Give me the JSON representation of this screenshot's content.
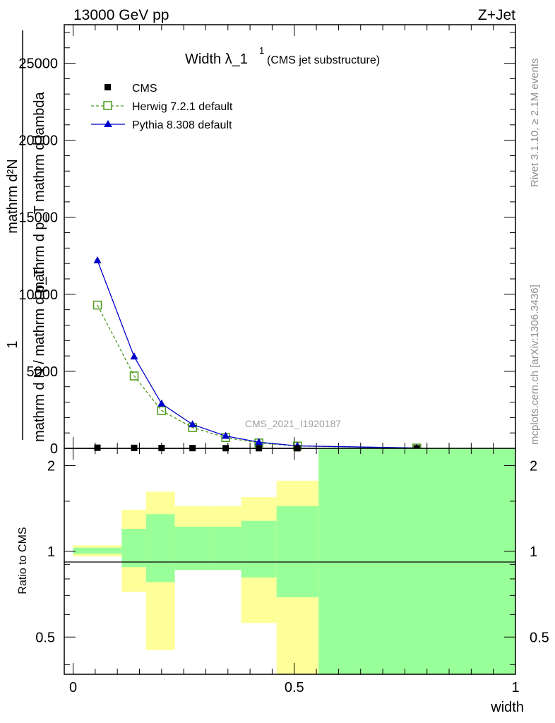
{
  "header": {
    "left": "13000 GeV pp",
    "right": "Z+Jet"
  },
  "plot_title": {
    "main": "Width λ_1",
    "superscript": "1",
    "suffix": "(CMS jet substructure)"
  },
  "ylabel_main": {
    "numerator": "mathrm d²N",
    "denominator": "mathrm d p_T mathrm d lambda",
    "prefix_num": "1",
    "prefix_den": "mathrm d N / mathrm d p_T"
  },
  "ylabel_ratio": "Ratio to CMS",
  "xlabel": "width",
  "watermark": "CMS_2021_I1920187",
  "side_text": {
    "rivet": "Rivet 3.1.10, ≥ 2.1M events",
    "mcplots": "mcplots.cern.ch [arXiv:1306.3436]"
  },
  "main_yticks": [
    "0",
    "5000",
    "10000",
    "15000",
    "20000",
    "25000"
  ],
  "ratio_yticks": [
    "0.5",
    "1",
    "2"
  ],
  "xticks": [
    "0",
    "0.5",
    "1"
  ],
  "legend": [
    "CMS",
    "Herwig 7.2.1 default",
    "Pythia 8.308 default"
  ],
  "colors": {
    "cms": "#000000",
    "herwig": "#4a9a1a",
    "pythia": "#0000cc",
    "band_yellow": "#ffff99",
    "band_green": "#99ff99"
  },
  "chart_data": {
    "type": "line",
    "x_range": [
      -0.02,
      1.0
    ],
    "main_ylim": [
      0,
      27500
    ],
    "ratio_ylim": [
      0.37,
      2.3
    ],
    "ratio_log_scale": true,
    "bins": [
      0.0,
      0.11,
      0.165,
      0.23,
      0.31,
      0.38,
      0.46,
      0.555,
      1.0
    ],
    "x": [
      0.055,
      0.138,
      0.2,
      0.27,
      0.345,
      0.42,
      0.507,
      0.777
    ],
    "series": [
      {
        "name": "CMS",
        "values": [
          40,
          30,
          20,
          15,
          10,
          8,
          5,
          2
        ]
      },
      {
        "name": "Herwig 7.2.1 default",
        "values": [
          9300,
          4700,
          2450,
          1350,
          700,
          350,
          150,
          20
        ]
      },
      {
        "name": "Pythia 8.308 default",
        "values": [
          12200,
          5950,
          2900,
          1550,
          800,
          400,
          160,
          22
        ]
      }
    ],
    "ratio_bands": {
      "yellow": [
        [
          0.96,
          1.05
        ],
        [
          0.72,
          1.4
        ],
        [
          0.45,
          1.62
        ],
        [
          0.86,
          1.44
        ],
        [
          0.86,
          1.44
        ],
        [
          0.56,
          1.55
        ],
        [
          0.3,
          1.77
        ],
        [
          0.3,
          2.4
        ]
      ],
      "green": [
        [
          0.98,
          1.03
        ],
        [
          0.88,
          1.2
        ],
        [
          0.78,
          1.35
        ],
        [
          0.86,
          1.22
        ],
        [
          0.86,
          1.22
        ],
        [
          0.81,
          1.28
        ],
        [
          0.69,
          1.44
        ],
        [
          0.3,
          2.4
        ]
      ]
    }
  }
}
